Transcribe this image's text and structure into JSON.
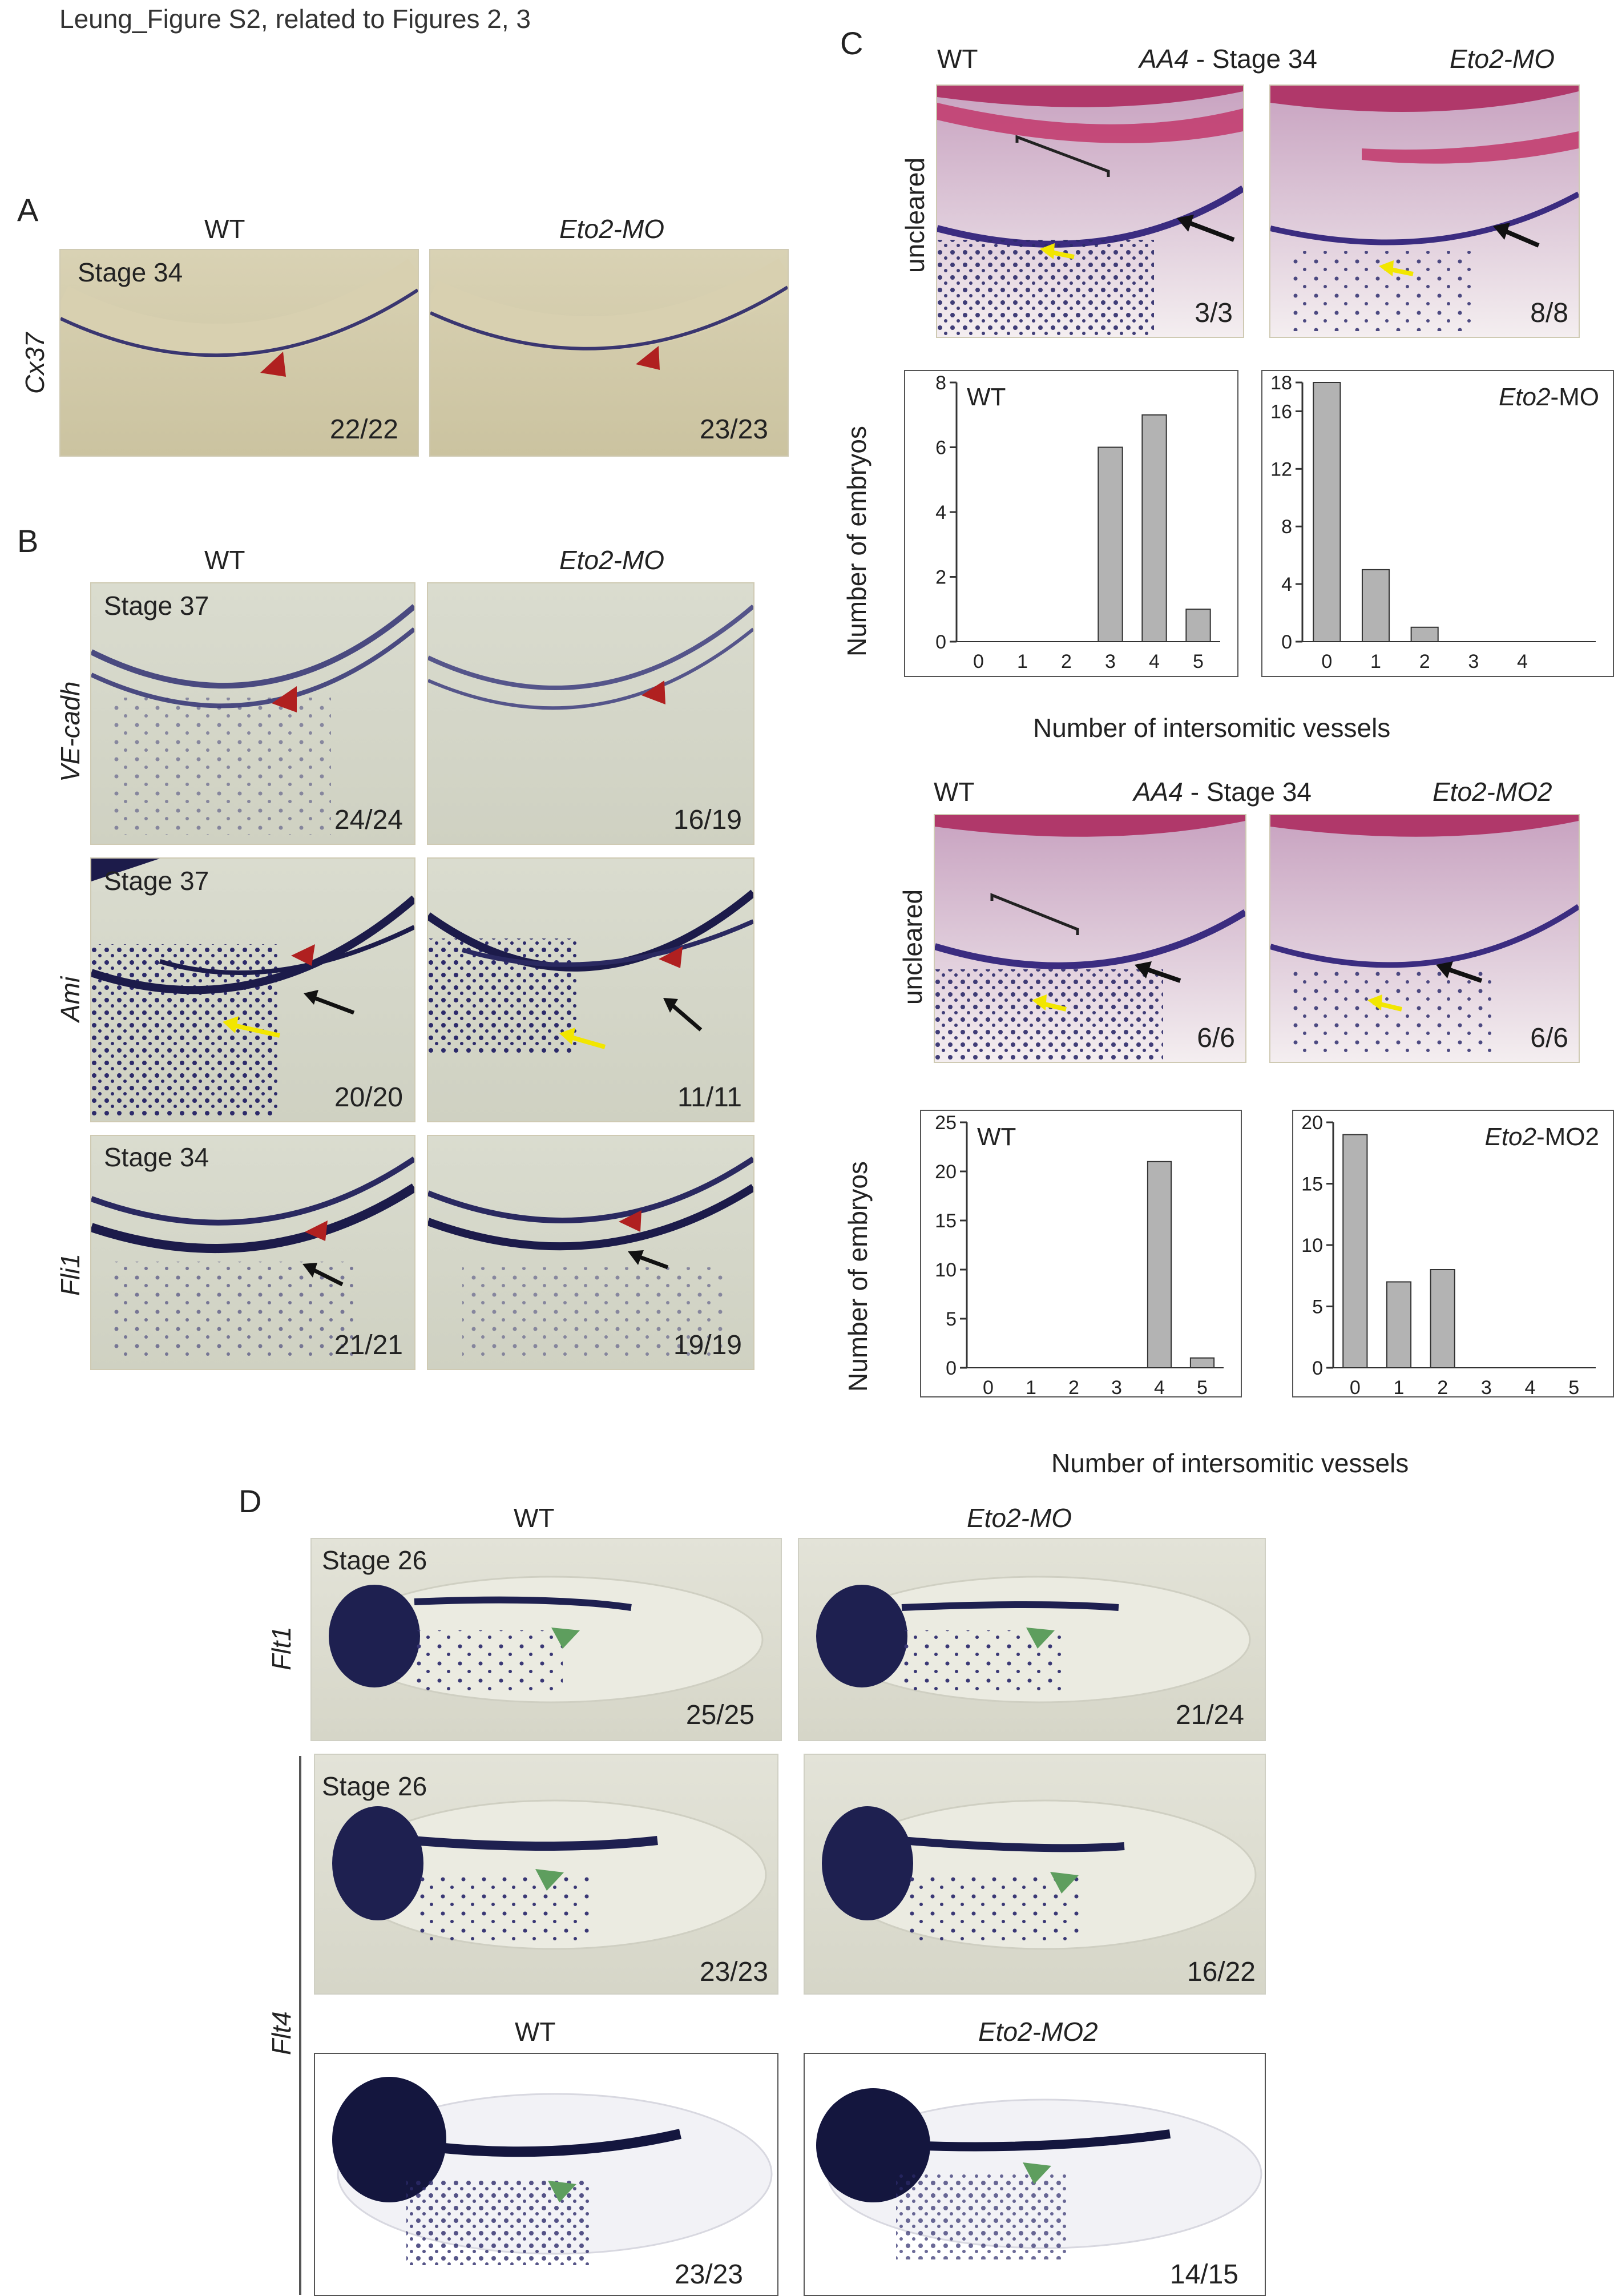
{
  "header": {
    "title": "Leung_Figure S2, related to Figures 2, 3"
  },
  "panelA": {
    "letter": "A",
    "cols": [
      "WT",
      "Eto2-MO"
    ],
    "gene": "Cx37",
    "stage": "Stage 34",
    "counts": [
      "22/22",
      "23/23"
    ]
  },
  "panelB": {
    "letter": "B",
    "cols": [
      "WT",
      "Eto2-MO"
    ],
    "rows": [
      {
        "gene": "VE-cadh",
        "stage": "Stage 37",
        "counts": [
          "24/24",
          "16/19"
        ]
      },
      {
        "gene": "Ami",
        "stage": "Stage 37",
        "counts": [
          "20/20",
          "11/11"
        ]
      },
      {
        "gene": "Fli1",
        "stage": "Stage 34",
        "counts": [
          "21/21",
          "19/19"
        ]
      }
    ]
  },
  "panelC": {
    "letter": "C",
    "top": {
      "wt": "WT",
      "gene": "AA4",
      "stage": " - Stage 34",
      "mo": "Eto2-MO",
      "row": "uncleared",
      "counts": [
        "3/3",
        "8/8"
      ]
    },
    "bottom": {
      "wt": "WT",
      "gene": "AA4",
      "stage": " - Stage 34",
      "mo": "Eto2-MO2",
      "row": "uncleared",
      "counts": [
        "6/6",
        "6/6"
      ]
    },
    "xlabel": "Number of intersomitic vessels",
    "ylabel": "Number of embryos"
  },
  "chart_data": [
    {
      "type": "bar",
      "legend": "WT",
      "categories": [
        "0",
        "1",
        "2",
        "3",
        "4",
        "5"
      ],
      "values": [
        0,
        0,
        0,
        6,
        7,
        1
      ],
      "ylim": [
        0,
        8
      ],
      "yticks": [
        "0",
        "2",
        "4",
        "6",
        "8"
      ],
      "xlabel": "Number of intersomitic vessels",
      "ylabel": "Number of embryos"
    },
    {
      "type": "bar",
      "legend": "Eto2-MO",
      "categories": [
        "0",
        "1",
        "2",
        "3",
        "4"
      ],
      "values": [
        18,
        5,
        1,
        0,
        0
      ],
      "ylim": [
        0,
        18
      ],
      "yticks": [
        "0",
        "4",
        "8",
        "12",
        "16",
        "18"
      ],
      "xlabel": "Number of intersomitic vessels",
      "ylabel": "Number of embryos"
    },
    {
      "type": "bar",
      "legend": "WT",
      "categories": [
        "0",
        "1",
        "2",
        "3",
        "4",
        "5"
      ],
      "values": [
        0,
        0,
        0,
        0,
        21,
        1
      ],
      "ylim": [
        0,
        25
      ],
      "yticks": [
        "0",
        "5",
        "10",
        "15",
        "20",
        "25"
      ],
      "xlabel": "Number of intersomitic vessels",
      "ylabel": "Number of embryos"
    },
    {
      "type": "bar",
      "legend": "Eto2-MO2",
      "categories": [
        "0",
        "1",
        "2",
        "3",
        "4",
        "5"
      ],
      "values": [
        19,
        7,
        8,
        0,
        0,
        0
      ],
      "ylim": [
        0,
        20
      ],
      "yticks": [
        "0",
        "5",
        "10",
        "15",
        "20"
      ],
      "xlabel": "Number of intersomitic vessels",
      "ylabel": "Number of embryos"
    }
  ],
  "panelD": {
    "letter": "D",
    "cols": [
      "WT",
      "Eto2-MO"
    ],
    "cols2": [
      "WT",
      "Eto2-MO2"
    ],
    "flt1": {
      "gene": "Flt1",
      "stage": "Stage 26",
      "counts": [
        "25/25",
        "21/24"
      ]
    },
    "flt4": {
      "gene": "Flt4",
      "stage": "Stage 26",
      "counts": [
        "23/23",
        "16/22"
      ],
      "counts2": [
        "23/23",
        "14/15"
      ]
    }
  },
  "colors": {
    "red_arrow": "#b02020",
    "black_arrow": "#111111",
    "yellow_arrow": "#f2e600",
    "green_arrow": "#5e9e5e",
    "bar_fill": "#b3b3b3"
  }
}
